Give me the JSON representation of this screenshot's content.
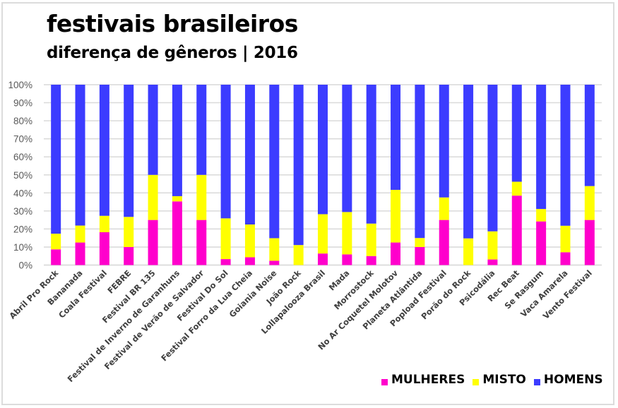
{
  "chart_data": {
    "type": "bar",
    "stacked": true,
    "percent_stacked": true,
    "title": "festivais brasileiros",
    "subtitle": "diferença de gêneros | 2016",
    "xlabel": "",
    "ylabel": "",
    "ylim": [
      0,
      100
    ],
    "y_ticks": [
      "0%",
      "10%",
      "20%",
      "30%",
      "40%",
      "50%",
      "60%",
      "70%",
      "80%",
      "90%",
      "100%"
    ],
    "grid": true,
    "legend_position": "bottom-right",
    "categories": [
      "Abril Pro Rock",
      "Bananada",
      "Coala Festival",
      "FEBRE",
      "Festival BR 135",
      "Festival de Inverno de Garanhuns",
      "Festival de Verão de Salvador",
      "Festival Do Sol",
      "Festival Forro da Lua Cheia",
      "Goiania Noise",
      "João Rock",
      "Lollapalooza Brasil",
      "Mada",
      "Morrostock",
      "No Ar Coquetel Molotov",
      "Planeta Atlântida",
      "Popload Festival",
      "Porão do Rock",
      "Psicodália",
      "Rec Beat",
      "Se Rasgum",
      "Vaca Amarela",
      "Vento Festival"
    ],
    "series": [
      {
        "name": "MULHERES",
        "color": "#ff00cc",
        "values": [
          8.7,
          12.5,
          18.2,
          10.0,
          25.0,
          35.3,
          25.0,
          3.3,
          4.3,
          2.4,
          0.0,
          6.4,
          5.9,
          5.0,
          12.5,
          10.0,
          25.0,
          0.0,
          3.1,
          38.5,
          24.2,
          7.1,
          25.0
        ]
      },
      {
        "name": "MISTO",
        "color": "#ffff00",
        "values": [
          8.7,
          9.4,
          9.1,
          16.7,
          25.0,
          2.9,
          25.0,
          22.6,
          18.2,
          12.5,
          11.1,
          21.8,
          23.5,
          18.0,
          29.2,
          5.0,
          12.5,
          14.8,
          15.6,
          7.7,
          6.9,
          14.7,
          18.8
        ]
      },
      {
        "name": "HOMENS",
        "color": "#3c3cff",
        "values": [
          82.6,
          78.1,
          72.7,
          73.3,
          50.0,
          61.8,
          50.0,
          74.1,
          77.5,
          85.1,
          88.9,
          71.8,
          70.6,
          77.0,
          58.3,
          85.0,
          62.5,
          85.2,
          81.3,
          53.8,
          68.9,
          78.2,
          56.2
        ]
      }
    ]
  }
}
